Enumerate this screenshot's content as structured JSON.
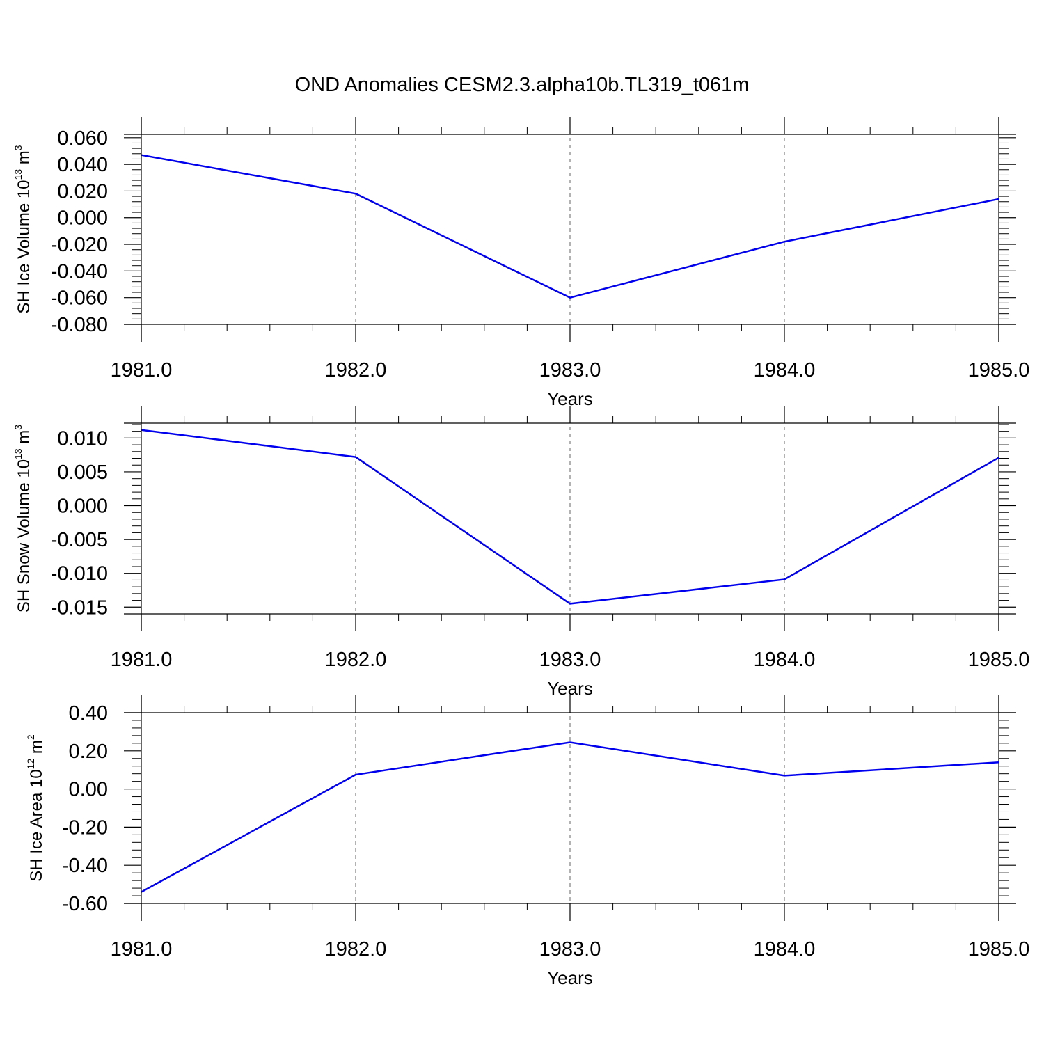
{
  "title": "OND Anomalies CESM2.3.alpha10b.TL319_t061m",
  "chart_data": [
    {
      "type": "line",
      "xlabel": "Years",
      "ylabel_main": "SH Ice Volume 10",
      "ylabel_exp": "13",
      "ylabel_unit": " m",
      "ylabel_unit_exp": "3",
      "xlim": [
        1981,
        1985
      ],
      "ylim": [
        -0.08,
        0.0625
      ],
      "yticks": [
        -0.08,
        -0.06,
        -0.04,
        -0.02,
        0.0,
        0.02,
        0.04,
        0.06
      ],
      "ytick_labels": [
        "-0.080",
        "-0.060",
        "-0.040",
        "-0.020",
        "0.000",
        "0.020",
        "0.040",
        "0.060"
      ],
      "xticks": [
        1981,
        1982,
        1983,
        1984,
        1985
      ],
      "xtick_labels": [
        "1981.0",
        "1982.0",
        "1983.0",
        "1984.0",
        "1985.0"
      ],
      "grid": "vertical dashed",
      "color": "#0000ee",
      "x": [
        1981,
        1982,
        1983,
        1984,
        1985
      ],
      "y": [
        0.047,
        0.018,
        -0.06,
        -0.018,
        0.014
      ]
    },
    {
      "type": "line",
      "xlabel": "Years",
      "ylabel_main": "SH Snow Volume 10",
      "ylabel_exp": "13",
      "ylabel_unit": " m",
      "ylabel_unit_exp": "3",
      "xlim": [
        1981,
        1985
      ],
      "ylim": [
        -0.016,
        0.0122
      ],
      "yticks": [
        -0.015,
        -0.01,
        -0.005,
        0.0,
        0.005,
        0.01
      ],
      "ytick_labels": [
        "-0.015",
        "-0.010",
        "-0.005",
        "0.000",
        "0.005",
        "0.010"
      ],
      "xticks": [
        1981,
        1982,
        1983,
        1984,
        1985
      ],
      "xtick_labels": [
        "1981.0",
        "1982.0",
        "1983.0",
        "1984.0",
        "1985.0"
      ],
      "grid": "vertical dashed",
      "color": "#0000ee",
      "x": [
        1981,
        1982,
        1983,
        1984,
        1985
      ],
      "y": [
        0.0112,
        0.0072,
        -0.0145,
        -0.0109,
        0.0071
      ]
    },
    {
      "type": "line",
      "xlabel": "Years",
      "ylabel_main": "SH Ice Area 10",
      "ylabel_exp": "12",
      "ylabel_unit": " m",
      "ylabel_unit_exp": "2",
      "xlim": [
        1981,
        1985
      ],
      "ylim": [
        -0.6,
        0.4
      ],
      "yticks": [
        -0.6,
        -0.4,
        -0.2,
        0.0,
        0.2,
        0.4
      ],
      "ytick_labels": [
        "-0.60",
        "-0.40",
        "-0.20",
        "0.00",
        "0.20",
        "0.40"
      ],
      "xticks": [
        1981,
        1982,
        1983,
        1984,
        1985
      ],
      "xtick_labels": [
        "1981.0",
        "1982.0",
        "1983.0",
        "1984.0",
        "1985.0"
      ],
      "grid": "vertical dashed",
      "color": "#0000ee",
      "x": [
        1981,
        1982,
        1983,
        1984,
        1985
      ],
      "y": [
        -0.54,
        0.075,
        0.245,
        0.07,
        0.14
      ]
    }
  ]
}
